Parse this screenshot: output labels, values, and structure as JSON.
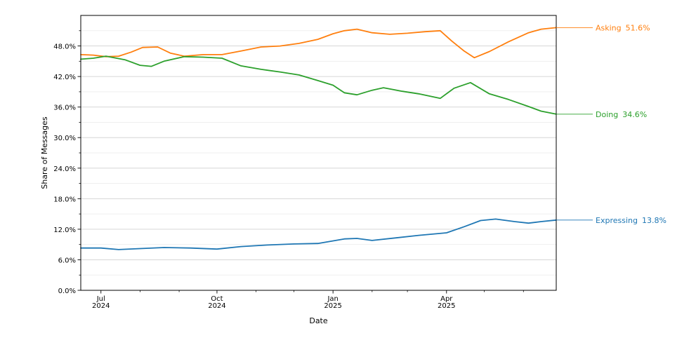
{
  "chart_data": {
    "type": "line",
    "xlabel": "Date",
    "ylabel": "Share of Messages",
    "xlim": [
      "2024-06-15",
      "2025-06-27"
    ],
    "ylim": [
      0,
      54
    ],
    "y_ticks": [
      {
        "value": 0,
        "label": "0.0%"
      },
      {
        "value": 6,
        "label": "6.0%"
      },
      {
        "value": 12,
        "label": "12.0%"
      },
      {
        "value": 18,
        "label": "18.0%"
      },
      {
        "value": 24,
        "label": "24.0%"
      },
      {
        "value": 30,
        "label": "30.0%"
      },
      {
        "value": 36,
        "label": "36.0%"
      },
      {
        "value": 42,
        "label": "42.0%"
      },
      {
        "value": 48,
        "label": "48.0%"
      }
    ],
    "y_minor_step": 3,
    "x_ticks": [
      {
        "date": "2024-07-01",
        "month": "Jul",
        "year": "2024"
      },
      {
        "date": "2024-10-01",
        "month": "Oct",
        "year": "2024"
      },
      {
        "date": "2025-01-01",
        "month": "Jan",
        "year": "2025"
      },
      {
        "date": "2025-04-01",
        "month": "Apr",
        "year": "2025"
      }
    ],
    "x_minor_ticks": [
      "2024-08-01",
      "2024-09-01",
      "2024-11-01",
      "2024-12-01",
      "2025-02-01",
      "2025-03-01",
      "2025-05-01",
      "2025-06-01"
    ],
    "grid": "horizontal",
    "series": [
      {
        "name": "Asking",
        "color": "#ff7f0e",
        "end_label": "51.6%",
        "points": [
          [
            "2024-06-15",
            46.3
          ],
          [
            "2024-06-25",
            46.2
          ],
          [
            "2024-07-05",
            45.9
          ],
          [
            "2024-07-15",
            46.0
          ],
          [
            "2024-07-25",
            46.8
          ],
          [
            "2024-08-03",
            47.7
          ],
          [
            "2024-08-15",
            47.8
          ],
          [
            "2024-08-25",
            46.6
          ],
          [
            "2024-09-05",
            46.0
          ],
          [
            "2024-09-20",
            46.3
          ],
          [
            "2024-10-05",
            46.3
          ],
          [
            "2024-10-20",
            47.0
          ],
          [
            "2024-11-05",
            47.8
          ],
          [
            "2024-11-20",
            48.0
          ],
          [
            "2024-12-05",
            48.5
          ],
          [
            "2024-12-20",
            49.3
          ],
          [
            "2025-01-01",
            50.4
          ],
          [
            "2025-01-10",
            51.0
          ],
          [
            "2025-01-20",
            51.3
          ],
          [
            "2025-02-01",
            50.6
          ],
          [
            "2025-02-15",
            50.3
          ],
          [
            "2025-03-01",
            50.5
          ],
          [
            "2025-03-15",
            50.8
          ],
          [
            "2025-03-27",
            51.0
          ],
          [
            "2025-04-05",
            49.0
          ],
          [
            "2025-04-15",
            47.0
          ],
          [
            "2025-04-23",
            45.7
          ],
          [
            "2025-05-05",
            46.9
          ],
          [
            "2025-05-20",
            48.8
          ],
          [
            "2025-06-05",
            50.6
          ],
          [
            "2025-06-15",
            51.3
          ],
          [
            "2025-06-27",
            51.6
          ]
        ]
      },
      {
        "name": "Doing",
        "color": "#2ca02c",
        "end_label": "34.6%",
        "points": [
          [
            "2024-06-15",
            45.4
          ],
          [
            "2024-06-25",
            45.6
          ],
          [
            "2024-07-05",
            46.0
          ],
          [
            "2024-07-20",
            45.3
          ],
          [
            "2024-08-01",
            44.2
          ],
          [
            "2024-08-10",
            44.0
          ],
          [
            "2024-08-20",
            45.0
          ],
          [
            "2024-09-05",
            45.9
          ],
          [
            "2024-09-20",
            45.8
          ],
          [
            "2024-10-05",
            45.6
          ],
          [
            "2024-10-20",
            44.1
          ],
          [
            "2024-11-05",
            43.4
          ],
          [
            "2024-11-20",
            42.9
          ],
          [
            "2024-12-05",
            42.3
          ],
          [
            "2024-12-20",
            41.2
          ],
          [
            "2025-01-01",
            40.3
          ],
          [
            "2025-01-10",
            38.8
          ],
          [
            "2025-01-20",
            38.4
          ],
          [
            "2025-02-01",
            39.3
          ],
          [
            "2025-02-10",
            39.8
          ],
          [
            "2025-02-25",
            39.1
          ],
          [
            "2025-03-10",
            38.6
          ],
          [
            "2025-03-27",
            37.7
          ],
          [
            "2025-04-07",
            39.7
          ],
          [
            "2025-04-20",
            40.8
          ],
          [
            "2025-05-05",
            38.6
          ],
          [
            "2025-05-20",
            37.5
          ],
          [
            "2025-06-05",
            36.1
          ],
          [
            "2025-06-15",
            35.2
          ],
          [
            "2025-06-27",
            34.6
          ]
        ]
      },
      {
        "name": "Expressing",
        "color": "#1f77b4",
        "end_label": "13.8%",
        "points": [
          [
            "2024-06-15",
            8.3
          ],
          [
            "2024-07-01",
            8.3
          ],
          [
            "2024-07-15",
            8.0
          ],
          [
            "2024-08-01",
            8.2
          ],
          [
            "2024-08-20",
            8.4
          ],
          [
            "2024-09-10",
            8.3
          ],
          [
            "2024-10-01",
            8.1
          ],
          [
            "2024-10-20",
            8.6
          ],
          [
            "2024-11-10",
            8.9
          ],
          [
            "2024-12-01",
            9.1
          ],
          [
            "2024-12-20",
            9.2
          ],
          [
            "2025-01-10",
            10.1
          ],
          [
            "2025-01-20",
            10.2
          ],
          [
            "2025-02-01",
            9.8
          ],
          [
            "2025-02-20",
            10.3
          ],
          [
            "2025-03-10",
            10.8
          ],
          [
            "2025-04-01",
            11.3
          ],
          [
            "2025-04-15",
            12.5
          ],
          [
            "2025-04-28",
            13.7
          ],
          [
            "2025-05-10",
            14.0
          ],
          [
            "2025-05-25",
            13.5
          ],
          [
            "2025-06-05",
            13.2
          ],
          [
            "2025-06-15",
            13.5
          ],
          [
            "2025-06-27",
            13.8
          ]
        ]
      }
    ]
  }
}
